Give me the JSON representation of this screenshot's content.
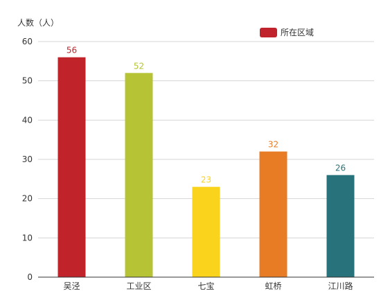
{
  "chart_data": {
    "type": "bar",
    "ylabel": "人数（人）",
    "xlabel": "",
    "ylim": [
      0,
      60
    ],
    "yticks": [
      0,
      10,
      20,
      30,
      40,
      50,
      60
    ],
    "grid": true,
    "legend": {
      "position": "top-right",
      "label": "所在区域",
      "color": "#c0232c"
    },
    "categories": [
      "吴泾",
      "工业区",
      "七宝",
      "虹桥",
      "江川路"
    ],
    "values": [
      56,
      52,
      23,
      32,
      26
    ],
    "colors": [
      "#c1232b",
      "#b5c334",
      "#fad31c",
      "#e87c25",
      "#27727b"
    ]
  }
}
